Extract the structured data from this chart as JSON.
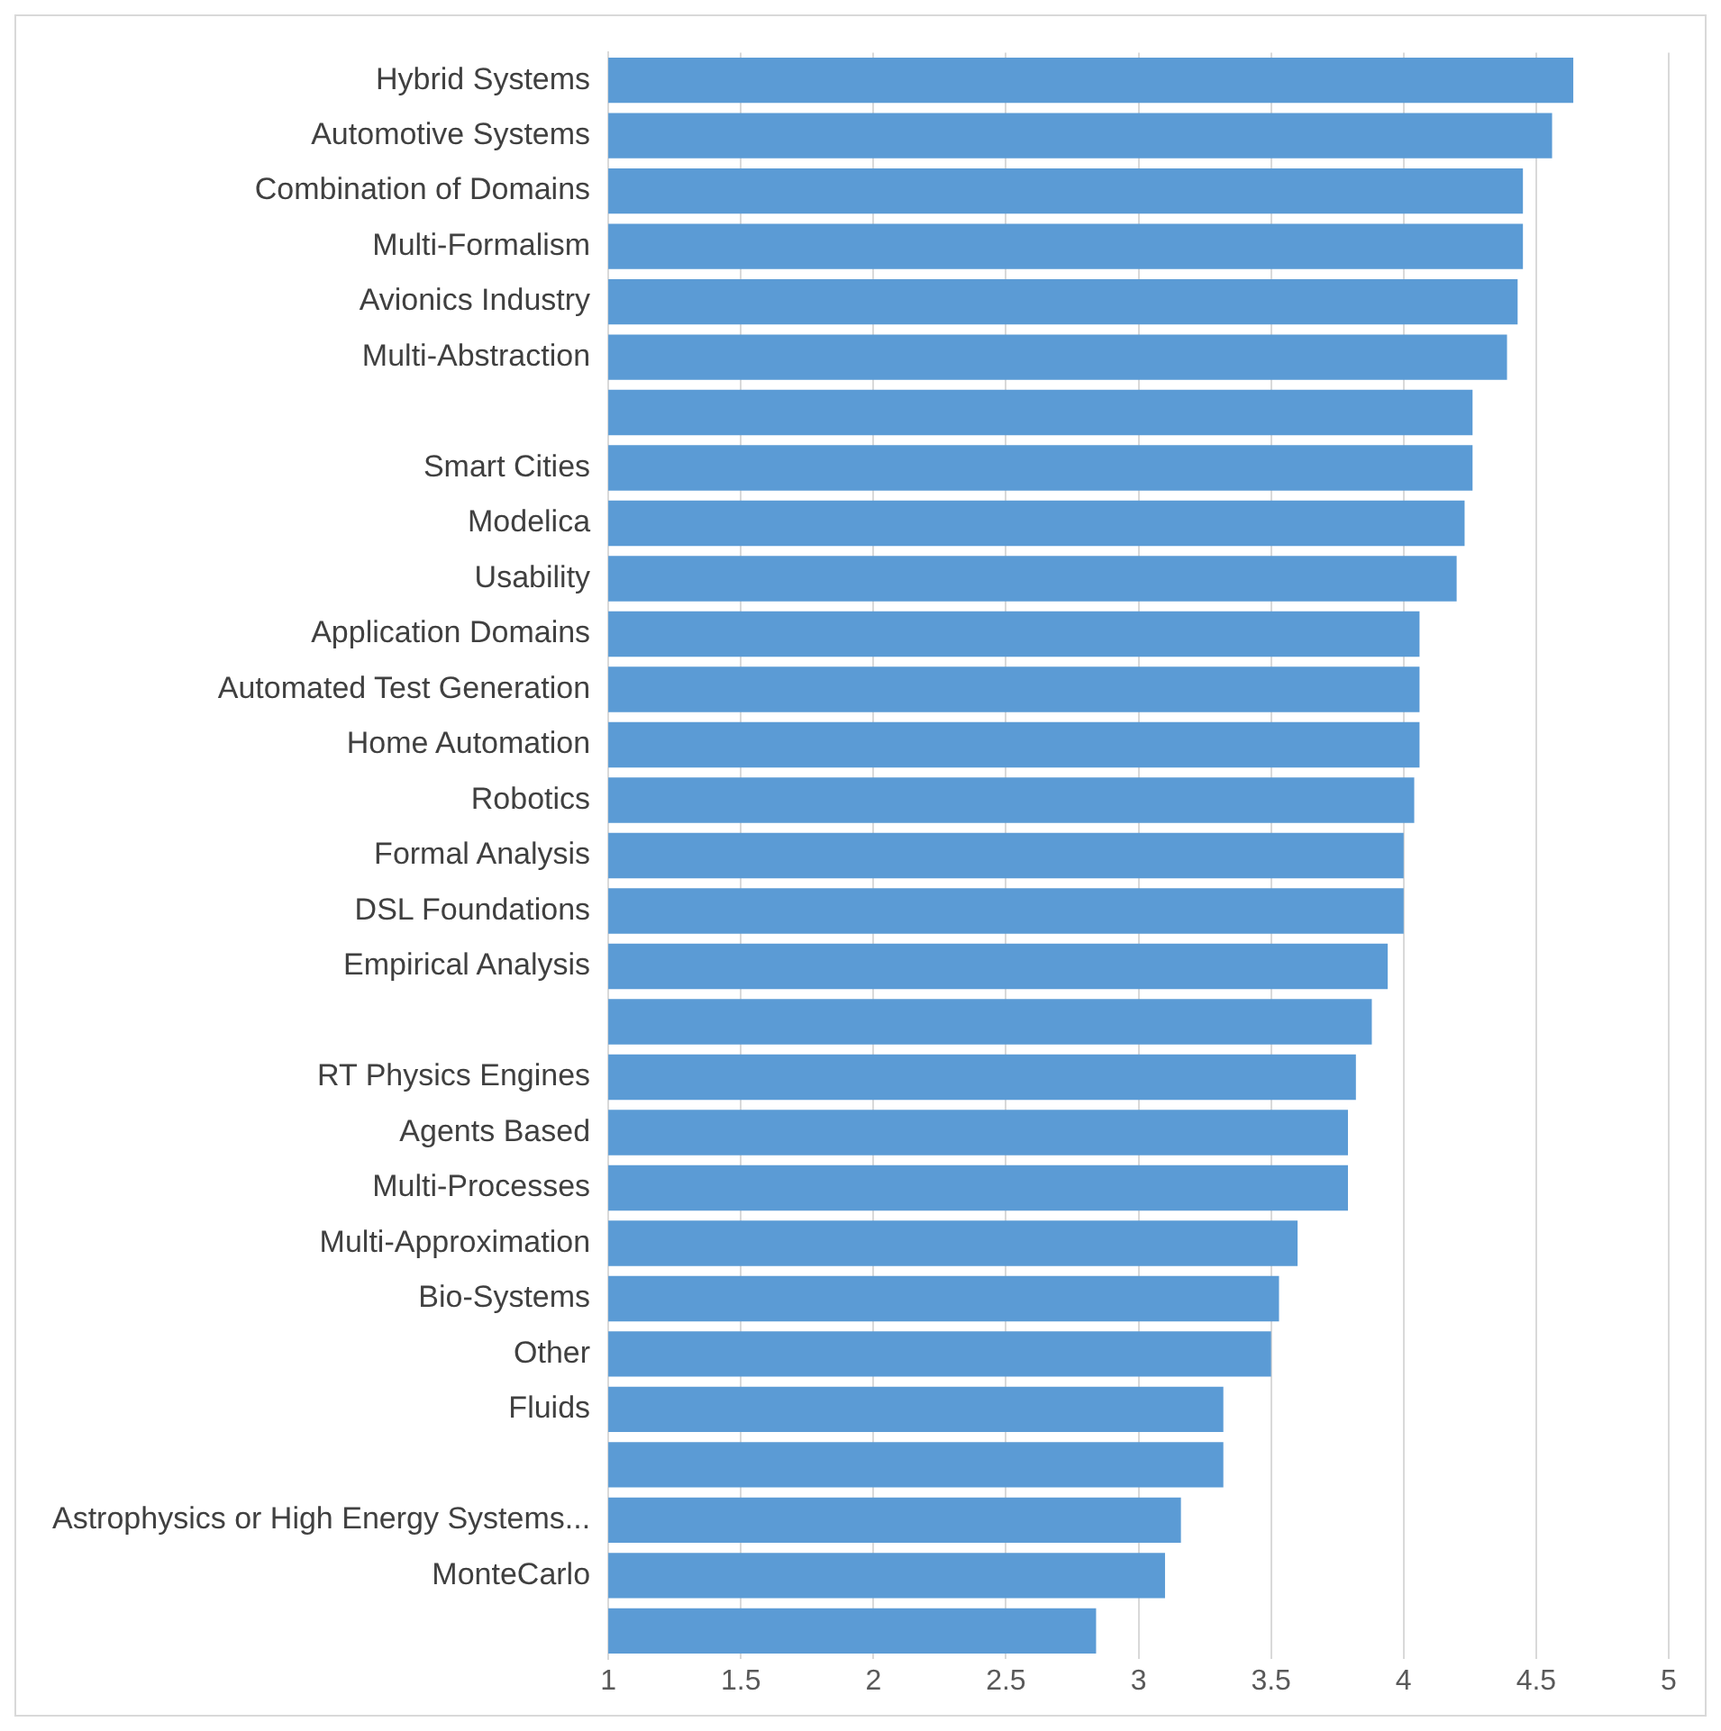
{
  "chart_data": {
    "type": "bar",
    "orientation": "horizontal",
    "categories": [
      "Hybrid Systems",
      "Automotive Systems",
      "Combination of Domains",
      "Multi-Formalism",
      "Avionics Industry",
      "Multi-Abstraction",
      null,
      "Smart Cities",
      "Modelica",
      "Usability",
      "Application Domains",
      "Automated Test Generation",
      "Home Automation",
      "Robotics",
      "Formal Analysis",
      "DSL Foundations",
      "Empirical Analysis",
      null,
      "RT Physics Engines",
      "Agents Based",
      "Multi-Processes",
      "Multi-Approximation",
      "Bio-Systems",
      "Other",
      "Fluids",
      null,
      "Astrophysics or High Energy Systems...",
      "MonteCarlo",
      null
    ],
    "values": [
      4.64,
      4.56,
      4.45,
      4.45,
      4.43,
      4.39,
      4.26,
      4.26,
      4.23,
      4.2,
      4.06,
      4.06,
      4.06,
      4.04,
      4.0,
      4.0,
      3.94,
      3.88,
      3.82,
      3.79,
      3.79,
      3.6,
      3.53,
      3.5,
      3.32,
      3.32,
      3.16,
      3.1,
      2.84
    ],
    "color": "#5b9bd5",
    "xlim": [
      1,
      5
    ],
    "xticks": [
      1,
      1.5,
      2,
      2.5,
      3,
      3.5,
      4,
      4.5,
      5
    ],
    "grid": "x"
  }
}
